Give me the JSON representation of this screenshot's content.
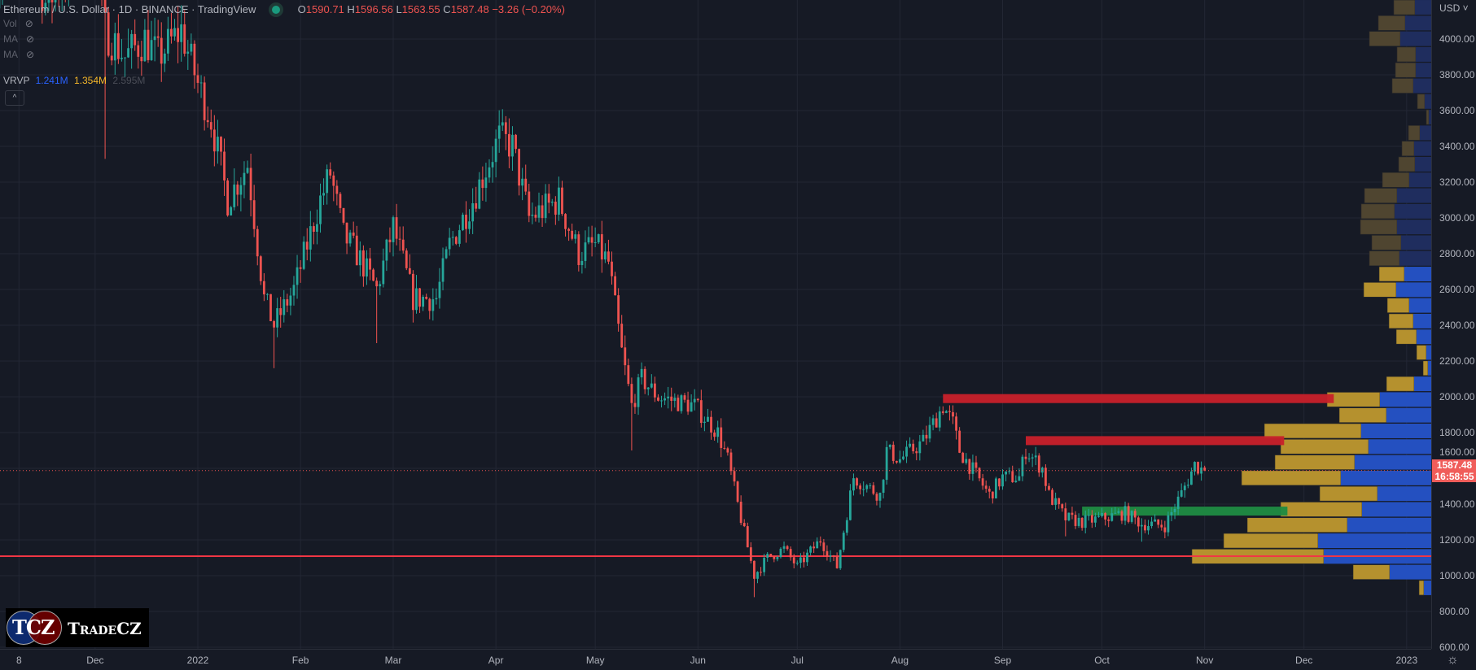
{
  "header": {
    "title": "Ethereum / U.S. Dollar · 1D · BINANCE · TradingView",
    "open_label": "O",
    "open": "1590.71",
    "high_label": "H",
    "high": "1596.56",
    "low_label": "L",
    "low": "1563.55",
    "close_label": "C",
    "close": "1587.48",
    "change": "−3.26 (−0.20%)"
  },
  "indicators": [
    {
      "label": "Vol",
      "icon": "eye-hidden-icon"
    },
    {
      "label": "MA",
      "icon": "eye-hidden-icon"
    },
    {
      "label": "MA",
      "icon": "eye-hidden-icon"
    }
  ],
  "vrvp": {
    "label": "VRVP",
    "up": "1.241M",
    "down": "1.354M",
    "total": "2.595M"
  },
  "collapse_icon": "^",
  "price_axis": {
    "currency": "USD ˅",
    "labels": [
      "4000.00",
      "3800.00",
      "3600.00",
      "3400.00",
      "3200.00",
      "3000.00",
      "2800.00",
      "2600.00",
      "2400.00",
      "2200.00",
      "2000.00",
      "1800.00",
      "1600.00",
      "1400.00",
      "1200.00",
      "1000.00",
      "800.00",
      "600.00"
    ],
    "current_price": "1587.48",
    "countdown": "16:58:55"
  },
  "time_axis": {
    "labels": [
      {
        "text": "8",
        "date": "2021-11-08"
      },
      {
        "text": "Dec",
        "date": "2021-12-01"
      },
      {
        "text": "2022",
        "date": "2022-01-01"
      },
      {
        "text": "Feb",
        "date": "2022-02-01"
      },
      {
        "text": "Mar",
        "date": "2022-03-01"
      },
      {
        "text": "Apr",
        "date": "2022-04-01"
      },
      {
        "text": "May",
        "date": "2022-05-01"
      },
      {
        "text": "Jun",
        "date": "2022-06-01"
      },
      {
        "text": "Jul",
        "date": "2022-07-01"
      },
      {
        "text": "Aug",
        "date": "2022-08-01"
      },
      {
        "text": "Sep",
        "date": "2022-09-01"
      },
      {
        "text": "Oct",
        "date": "2022-10-01"
      },
      {
        "text": "Nov",
        "date": "2022-11-01"
      },
      {
        "text": "Dec",
        "date": "2022-12-01"
      },
      {
        "text": "2023",
        "date": "2023-01-01"
      }
    ]
  },
  "logo": {
    "mark": "TCZ",
    "name": "TradeCZ"
  },
  "colors": {
    "up": "#26a69a",
    "down": "#ef5350",
    "vp_up": "#b5912e",
    "vp_down": "#2450c0",
    "vp_up_dim": "#4f4530",
    "vp_down_dim": "#1f2d5e",
    "bg": "#161a25",
    "grid": "#232734"
  },
  "chart_data": {
    "type": "candlestick",
    "symbol": "ETHUSD",
    "ylim": [
      600,
      4218
    ],
    "keypoints": [
      [
        "2021-11-01",
        4300
      ],
      [
        "2021-11-08",
        4750
      ],
      [
        "2021-11-16",
        4200
      ],
      [
        "2021-11-25",
        4400
      ],
      [
        "2021-12-01",
        4600
      ],
      [
        "2021-12-03",
        4200
      ],
      [
        "2021-12-04",
        4050
      ],
      [
        "2021-12-10",
        3900
      ],
      [
        "2021-12-16",
        4000
      ],
      [
        "2021-12-20",
        3900
      ],
      [
        "2021-12-27",
        4050
      ],
      [
        "2022-01-01",
        3750
      ],
      [
        "2022-01-05",
        3550
      ],
      [
        "2022-01-10",
        3100
      ],
      [
        "2022-01-16",
        3300
      ],
      [
        "2022-01-21",
        2550
      ],
      [
        "2022-01-24",
        2400
      ],
      [
        "2022-01-30",
        2600
      ],
      [
        "2022-02-07",
        3100
      ],
      [
        "2022-02-10",
        3250
      ],
      [
        "2022-02-14",
        2900
      ],
      [
        "2022-02-18",
        2800
      ],
      [
        "2022-02-24",
        2600
      ],
      [
        "2022-03-01",
        2950
      ],
      [
        "2022-03-07",
        2550
      ],
      [
        "2022-03-14",
        2550
      ],
      [
        "2022-03-18",
        2850
      ],
      [
        "2022-03-25",
        3100
      ],
      [
        "2022-04-02",
        3450
      ],
      [
        "2022-04-06",
        3400
      ],
      [
        "2022-04-11",
        3000
      ],
      [
        "2022-04-20",
        3100
      ],
      [
        "2022-04-26",
        2800
      ],
      [
        "2022-05-01",
        2850
      ],
      [
        "2022-05-05",
        2750
      ],
      [
        "2022-05-09",
        2250
      ],
      [
        "2022-05-12",
        1950
      ],
      [
        "2022-05-15",
        2100
      ],
      [
        "2022-05-20",
        2000
      ],
      [
        "2022-05-31",
        1950
      ],
      [
        "2022-06-07",
        1800
      ],
      [
        "2022-06-10",
        1650
      ],
      [
        "2022-06-13",
        1400
      ],
      [
        "2022-06-18",
        1000
      ],
      [
        "2022-06-22",
        1100
      ],
      [
        "2022-06-27",
        1150
      ],
      [
        "2022-07-01",
        1050
      ],
      [
        "2022-07-08",
        1200
      ],
      [
        "2022-07-13",
        1050
      ],
      [
        "2022-07-18",
        1550
      ],
      [
        "2022-07-26",
        1450
      ],
      [
        "2022-07-28",
        1700
      ],
      [
        "2022-08-01",
        1650
      ],
      [
        "2022-08-08",
        1750
      ],
      [
        "2022-08-14",
        1950
      ],
      [
        "2022-08-17",
        1850
      ],
      [
        "2022-08-19",
        1700
      ],
      [
        "2022-08-28",
        1450
      ],
      [
        "2022-09-01",
        1550
      ],
      [
        "2022-09-06",
        1550
      ],
      [
        "2022-09-08",
        1700
      ],
      [
        "2022-09-13",
        1600
      ],
      [
        "2022-09-15",
        1450
      ],
      [
        "2022-09-20",
        1320
      ],
      [
        "2022-09-25",
        1300
      ],
      [
        "2022-10-01",
        1320
      ],
      [
        "2022-10-08",
        1350
      ],
      [
        "2022-10-13",
        1290
      ],
      [
        "2022-10-20",
        1280
      ],
      [
        "2022-10-25",
        1460
      ],
      [
        "2022-10-29",
        1620
      ],
      [
        "2022-11-01",
        1587.48
      ]
    ],
    "wicks": [
      [
        "2021-12-04",
        3330
      ],
      [
        "2022-01-24",
        2160
      ],
      [
        "2022-02-24",
        2300
      ],
      [
        "2022-05-12",
        1700
      ],
      [
        "2022-06-18",
        880
      ],
      [
        "2022-09-20",
        1220
      ],
      [
        "2022-10-13",
        1190
      ]
    ],
    "levels": [
      {
        "name": "resistance-zone-2000",
        "price": 1990,
        "from": "2022-08-14",
        "to": "2022-12-10",
        "color": "#c8202a"
      },
      {
        "name": "resistance-zone-1780",
        "price": 1755,
        "from": "2022-09-08",
        "to": "2022-11-25",
        "color": "#c8202a"
      },
      {
        "name": "support-zone-1360",
        "price": 1361,
        "from": "2022-09-25",
        "to": "2022-11-26",
        "color": "#1f8c42"
      },
      {
        "name": "support-line-1110",
        "price": 1109,
        "from": "2021-11-01",
        "to": "2023-01-10",
        "color": "#f23645"
      }
    ],
    "volume_profile": {
      "top_price": 4218,
      "row_size": 87.7,
      "value_area_from_row": 17,
      "rows": [
        [
          26,
          20
        ],
        [
          33,
          32
        ],
        [
          38,
          38
        ],
        [
          23,
          19
        ],
        [
          25,
          19
        ],
        [
          26,
          22
        ],
        [
          9,
          8
        ],
        [
          3,
          3
        ],
        [
          14,
          14
        ],
        [
          15,
          21
        ],
        [
          20,
          20
        ],
        [
          33,
          27
        ],
        [
          40,
          42
        ],
        [
          41,
          45
        ],
        [
          45,
          42
        ],
        [
          36,
          37
        ],
        [
          37,
          39
        ],
        [
          31,
          33
        ],
        [
          40,
          43
        ],
        [
          27,
          27
        ],
        [
          30,
          22
        ],
        [
          25,
          18
        ],
        [
          12,
          6
        ],
        [
          6,
          4
        ],
        [
          34,
          21
        ],
        [
          65,
          63
        ],
        [
          58,
          55
        ],
        [
          119,
          86
        ],
        [
          108,
          77
        ],
        [
          98,
          94
        ],
        [
          122,
          111
        ],
        [
          71,
          66
        ],
        [
          100,
          85
        ],
        [
          123,
          103
        ],
        [
          116,
          139
        ],
        [
          162,
          132
        ],
        [
          45,
          51
        ],
        [
          6,
          9
        ]
      ]
    }
  }
}
